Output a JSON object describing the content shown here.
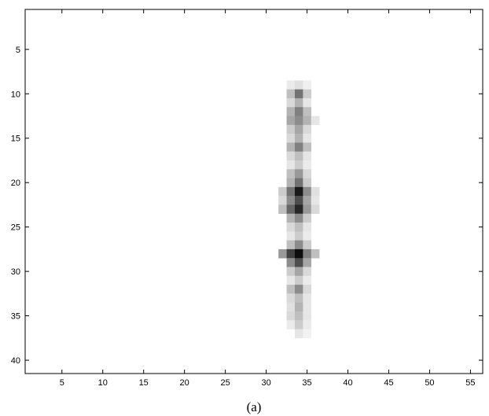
{
  "chart_data": {
    "type": "heatmap",
    "caption": "(a)",
    "colormap": "gray-inverted",
    "x_ticks": [
      5,
      10,
      15,
      20,
      25,
      30,
      35,
      40,
      45,
      50,
      55
    ],
    "y_ticks": [
      5,
      10,
      15,
      20,
      25,
      30,
      35,
      40
    ],
    "xlim": [
      0.5,
      56.5
    ],
    "ylim": [
      0.5,
      41.5
    ],
    "y_direction": "reversed",
    "grid": false,
    "value_range": [
      0,
      1
    ],
    "cells": [
      [
        33,
        9,
        0.08
      ],
      [
        34,
        9,
        0.12
      ],
      [
        35,
        9,
        0.06
      ],
      [
        33,
        10,
        0.25
      ],
      [
        34,
        10,
        0.55
      ],
      [
        35,
        10,
        0.2
      ],
      [
        33,
        11,
        0.15
      ],
      [
        34,
        11,
        0.3
      ],
      [
        35,
        11,
        0.1
      ],
      [
        33,
        12,
        0.3
      ],
      [
        34,
        12,
        0.5
      ],
      [
        35,
        12,
        0.25
      ],
      [
        33,
        13,
        0.35
      ],
      [
        34,
        13,
        0.45
      ],
      [
        35,
        13,
        0.3
      ],
      [
        36,
        13,
        0.1
      ],
      [
        33,
        14,
        0.2
      ],
      [
        34,
        14,
        0.35
      ],
      [
        35,
        14,
        0.15
      ],
      [
        33,
        15,
        0.15
      ],
      [
        34,
        15,
        0.3
      ],
      [
        35,
        15,
        0.1
      ],
      [
        33,
        16,
        0.3
      ],
      [
        34,
        16,
        0.5
      ],
      [
        35,
        16,
        0.25
      ],
      [
        33,
        17,
        0.15
      ],
      [
        34,
        17,
        0.25
      ],
      [
        35,
        17,
        0.1
      ],
      [
        33,
        18,
        0.1
      ],
      [
        34,
        18,
        0.2
      ],
      [
        35,
        18,
        0.08
      ],
      [
        33,
        19,
        0.25
      ],
      [
        34,
        19,
        0.4
      ],
      [
        35,
        19,
        0.15
      ],
      [
        33,
        20,
        0.3
      ],
      [
        34,
        20,
        0.55
      ],
      [
        35,
        20,
        0.2
      ],
      [
        32,
        21,
        0.2
      ],
      [
        33,
        21,
        0.55
      ],
      [
        34,
        21,
        0.9
      ],
      [
        35,
        21,
        0.45
      ],
      [
        36,
        21,
        0.12
      ],
      [
        32,
        22,
        0.15
      ],
      [
        33,
        22,
        0.45
      ],
      [
        34,
        22,
        0.7
      ],
      [
        35,
        22,
        0.35
      ],
      [
        36,
        22,
        0.1
      ],
      [
        32,
        23,
        0.25
      ],
      [
        33,
        23,
        0.6
      ],
      [
        34,
        23,
        0.85
      ],
      [
        35,
        23,
        0.4
      ],
      [
        36,
        23,
        0.15
      ],
      [
        33,
        24,
        0.3
      ],
      [
        34,
        24,
        0.45
      ],
      [
        35,
        24,
        0.2
      ],
      [
        33,
        25,
        0.15
      ],
      [
        34,
        25,
        0.25
      ],
      [
        35,
        25,
        0.1
      ],
      [
        33,
        26,
        0.1
      ],
      [
        34,
        26,
        0.2
      ],
      [
        35,
        26,
        0.08
      ],
      [
        33,
        27,
        0.25
      ],
      [
        34,
        27,
        0.45
      ],
      [
        35,
        27,
        0.2
      ],
      [
        32,
        28,
        0.4
      ],
      [
        33,
        28,
        0.75
      ],
      [
        34,
        28,
        0.95
      ],
      [
        35,
        28,
        0.5
      ],
      [
        36,
        28,
        0.25
      ],
      [
        33,
        29,
        0.45
      ],
      [
        34,
        29,
        0.7
      ],
      [
        35,
        29,
        0.35
      ],
      [
        33,
        30,
        0.2
      ],
      [
        34,
        30,
        0.35
      ],
      [
        35,
        30,
        0.15
      ],
      [
        33,
        31,
        0.1
      ],
      [
        34,
        31,
        0.2
      ],
      [
        35,
        31,
        0.08
      ],
      [
        33,
        32,
        0.25
      ],
      [
        34,
        32,
        0.45
      ],
      [
        35,
        32,
        0.15
      ],
      [
        33,
        33,
        0.15
      ],
      [
        34,
        33,
        0.25
      ],
      [
        35,
        33,
        0.1
      ],
      [
        33,
        34,
        0.12
      ],
      [
        34,
        34,
        0.3
      ],
      [
        35,
        34,
        0.1
      ],
      [
        33,
        35,
        0.15
      ],
      [
        34,
        35,
        0.25
      ],
      [
        35,
        35,
        0.1
      ],
      [
        33,
        36,
        0.08
      ],
      [
        34,
        36,
        0.2
      ],
      [
        35,
        36,
        0.08
      ],
      [
        34,
        37,
        0.1
      ],
      [
        35,
        37,
        0.05
      ]
    ]
  }
}
